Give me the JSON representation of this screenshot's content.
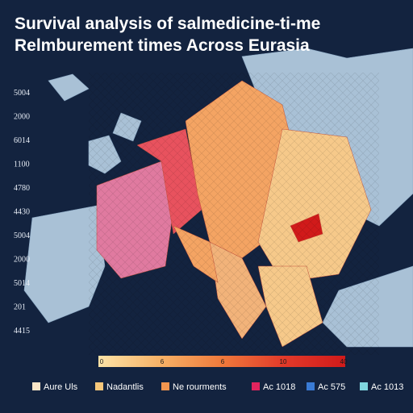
{
  "title": {
    "line1": "Survival analysis of salmedicine-ti-me",
    "line2": "Relmburement times Across Eurasia"
  },
  "side_labels": [
    "5004",
    "2000",
    "6014",
    "1100",
    "4780",
    "4430",
    "5004",
    "2000",
    "5014",
    "201",
    "4415"
  ],
  "colorbar": {
    "ticks": [
      "0",
      "6",
      "6",
      "10",
      "40"
    ],
    "colors": [
      "#fde3a7",
      "#f7b267",
      "#ef7a3c",
      "#e23a2a",
      "#d11a1a"
    ]
  },
  "legend": [
    {
      "label": "Aure Uls",
      "color": "#fbe6c8"
    },
    {
      "label": "Nadantlis",
      "color": "#f6c77a"
    },
    {
      "label": "Ne rourments",
      "color": "#f2964f"
    },
    {
      "label": "Ac 1018",
      "color": "#e0245e"
    },
    {
      "label": "Ac 575",
      "color": "#3a7bd5"
    },
    {
      "label": "Ac 1013",
      "color": "#7fd6e0"
    }
  ]
}
